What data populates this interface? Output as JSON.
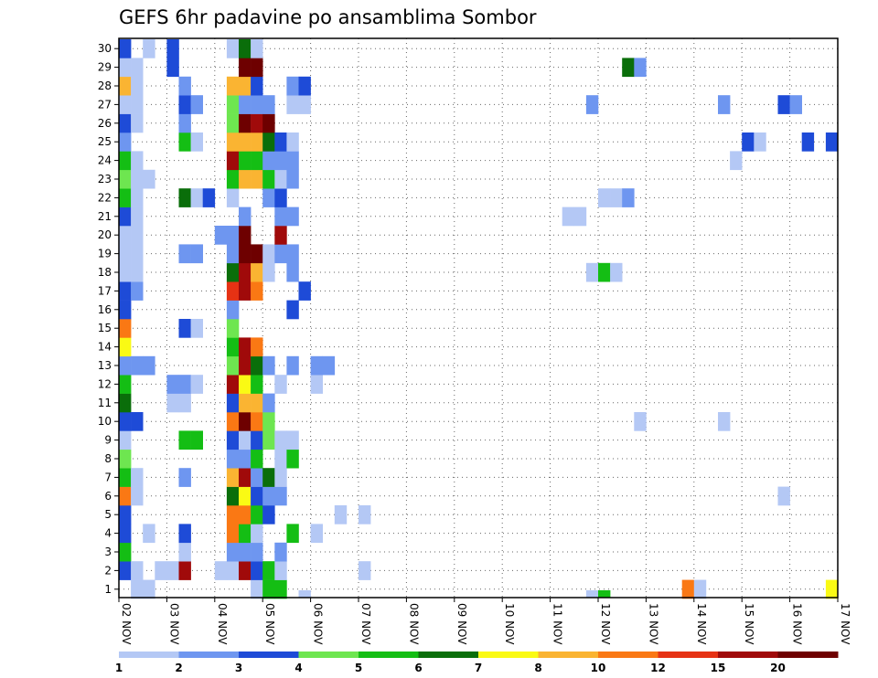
{
  "chart_data": {
    "type": "heatmap",
    "title": "GEFS 6hr padavine po ansamblima Sombor",
    "x_tick_labels": [
      "02 NOV",
      "03 NOV",
      "04 NOV",
      "05 NOV",
      "06 NOV",
      "07 NOV",
      "08 NOV",
      "09 NOV",
      "10 NOV",
      "11 NOV",
      "12 NOV",
      "13 NOV",
      "14 NOV",
      "15 NOV",
      "16 NOV",
      "17 NOV"
    ],
    "y_tick_labels": [
      "1",
      "2",
      "3",
      "4",
      "5",
      "6",
      "7",
      "8",
      "9",
      "10",
      "11",
      "12",
      "13",
      "14",
      "15",
      "16",
      "17",
      "18",
      "19",
      "20",
      "21",
      "22",
      "23",
      "24",
      "25",
      "26",
      "27",
      "28",
      "29",
      "30"
    ],
    "x_unit": "6-hour step from 02 NOV 00Z",
    "y_unit": "ensemble member",
    "grid": "dotted",
    "legend": {
      "position": "bottom",
      "labels": [
        "1",
        "2",
        "3",
        "4",
        "5",
        "6",
        "7",
        "8",
        "10",
        "12",
        "15",
        "20"
      ],
      "colors": [
        "#b4c8f5",
        "#6e96f0",
        "#1e4bd7",
        "#6ee650",
        "#14be14",
        "#0a6e0a",
        "#fafa14",
        "#fab432",
        "#fa7814",
        "#e63214",
        "#a00a0a",
        "#6e0000"
      ]
    },
    "color_levels": [
      1,
      2,
      3,
      4,
      5,
      6,
      7,
      8,
      10,
      12,
      15,
      20
    ],
    "cells": [
      [
        0,
        1,
        3
      ],
      [
        0,
        2,
        5
      ],
      [
        0,
        3,
        3
      ],
      [
        0,
        4,
        3
      ],
      [
        0,
        5,
        9
      ],
      [
        0,
        6,
        5
      ],
      [
        0,
        7,
        4
      ],
      [
        0,
        8,
        1
      ],
      [
        0,
        9,
        3
      ],
      [
        0,
        10,
        6
      ],
      [
        0,
        11,
        5
      ],
      [
        0,
        12,
        2
      ],
      [
        0,
        13,
        7
      ],
      [
        0,
        14,
        9
      ],
      [
        0,
        15,
        3
      ],
      [
        0,
        16,
        3
      ],
      [
        0,
        17,
        1
      ],
      [
        0,
        18,
        1
      ],
      [
        0,
        19,
        1
      ],
      [
        0,
        20,
        3
      ],
      [
        0,
        21,
        5
      ],
      [
        0,
        22,
        4
      ],
      [
        0,
        23,
        5
      ],
      [
        0,
        24,
        2
      ],
      [
        0,
        25,
        3
      ],
      [
        0,
        26,
        1
      ],
      [
        0,
        27,
        8
      ],
      [
        0,
        28,
        1
      ],
      [
        0,
        29,
        3
      ],
      [
        1,
        0,
        1
      ],
      [
        1,
        1,
        1
      ],
      [
        1,
        5,
        1
      ],
      [
        1,
        6,
        1
      ],
      [
        1,
        9,
        3
      ],
      [
        1,
        12,
        2
      ],
      [
        1,
        16,
        2
      ],
      [
        1,
        17,
        1
      ],
      [
        1,
        18,
        1
      ],
      [
        1,
        19,
        1
      ],
      [
        1,
        20,
        1
      ],
      [
        1,
        21,
        1
      ],
      [
        1,
        22,
        1
      ],
      [
        1,
        23,
        1
      ],
      [
        1,
        25,
        1
      ],
      [
        1,
        26,
        1
      ],
      [
        1,
        27,
        1
      ],
      [
        1,
        28,
        1
      ],
      [
        2,
        0,
        1
      ],
      [
        2,
        3,
        1
      ],
      [
        2,
        12,
        2
      ],
      [
        2,
        22,
        1
      ],
      [
        2,
        29,
        1
      ],
      [
        3,
        1,
        1
      ],
      [
        4,
        1,
        1
      ],
      [
        4,
        10,
        1
      ],
      [
        4,
        11,
        2
      ],
      [
        4,
        28,
        3
      ],
      [
        4,
        29,
        3
      ],
      [
        5,
        1,
        11
      ],
      [
        5,
        2,
        1
      ],
      [
        5,
        3,
        3
      ],
      [
        5,
        6,
        2
      ],
      [
        5,
        8,
        5
      ],
      [
        5,
        10,
        1
      ],
      [
        5,
        11,
        2
      ],
      [
        5,
        14,
        3
      ],
      [
        5,
        18,
        2
      ],
      [
        5,
        21,
        6
      ],
      [
        5,
        24,
        5
      ],
      [
        5,
        25,
        2
      ],
      [
        5,
        26,
        3
      ],
      [
        5,
        27,
        2
      ],
      [
        6,
        8,
        5
      ],
      [
        6,
        11,
        1
      ],
      [
        6,
        14,
        1
      ],
      [
        6,
        18,
        2
      ],
      [
        6,
        21,
        1
      ],
      [
        6,
        24,
        1
      ],
      [
        6,
        26,
        2
      ],
      [
        7,
        21,
        3
      ],
      [
        8,
        1,
        1
      ],
      [
        8,
        19,
        2
      ],
      [
        9,
        1,
        1
      ],
      [
        9,
        2,
        2
      ],
      [
        9,
        3,
        9
      ],
      [
        9,
        4,
        9
      ],
      [
        9,
        5,
        6
      ],
      [
        9,
        6,
        8
      ],
      [
        9,
        7,
        2
      ],
      [
        9,
        8,
        3
      ],
      [
        9,
        9,
        9
      ],
      [
        9,
        10,
        3
      ],
      [
        9,
        11,
        11
      ],
      [
        9,
        12,
        4
      ],
      [
        9,
        13,
        5
      ],
      [
        9,
        14,
        4
      ],
      [
        9,
        15,
        2
      ],
      [
        9,
        16,
        10
      ],
      [
        9,
        17,
        6
      ],
      [
        9,
        18,
        2
      ],
      [
        9,
        19,
        2
      ],
      [
        9,
        21,
        1
      ],
      [
        9,
        22,
        5
      ],
      [
        9,
        23,
        11
      ],
      [
        9,
        24,
        8
      ],
      [
        9,
        25,
        4
      ],
      [
        9,
        26,
        4
      ],
      [
        9,
        27,
        8
      ],
      [
        9,
        29,
        1
      ],
      [
        10,
        1,
        11
      ],
      [
        10,
        2,
        2
      ],
      [
        10,
        3,
        5
      ],
      [
        10,
        4,
        9
      ],
      [
        10,
        5,
        7
      ],
      [
        10,
        6,
        11
      ],
      [
        10,
        7,
        2
      ],
      [
        10,
        8,
        1
      ],
      [
        10,
        9,
        12
      ],
      [
        10,
        10,
        8
      ],
      [
        10,
        11,
        7
      ],
      [
        10,
        12,
        11
      ],
      [
        10,
        13,
        11
      ],
      [
        10,
        16,
        11
      ],
      [
        10,
        17,
        11
      ],
      [
        10,
        18,
        12
      ],
      [
        10,
        19,
        12
      ],
      [
        10,
        20,
        2
      ],
      [
        10,
        22,
        8
      ],
      [
        10,
        23,
        5
      ],
      [
        10,
        24,
        8
      ],
      [
        10,
        25,
        12
      ],
      [
        10,
        26,
        2
      ],
      [
        10,
        27,
        8
      ],
      [
        10,
        28,
        12
      ],
      [
        10,
        29,
        6
      ],
      [
        11,
        0,
        1
      ],
      [
        11,
        1,
        3
      ],
      [
        11,
        2,
        2
      ],
      [
        11,
        3,
        1
      ],
      [
        11,
        4,
        5
      ],
      [
        11,
        5,
        3
      ],
      [
        11,
        6,
        2
      ],
      [
        11,
        7,
        5
      ],
      [
        11,
        8,
        3
      ],
      [
        11,
        9,
        9
      ],
      [
        11,
        10,
        8
      ],
      [
        11,
        11,
        5
      ],
      [
        11,
        12,
        6
      ],
      [
        11,
        13,
        9
      ],
      [
        11,
        16,
        9
      ],
      [
        11,
        17,
        8
      ],
      [
        11,
        18,
        12
      ],
      [
        11,
        22,
        8
      ],
      [
        11,
        23,
        5
      ],
      [
        11,
        24,
        8
      ],
      [
        11,
        25,
        11
      ],
      [
        11,
        26,
        2
      ],
      [
        11,
        27,
        3
      ],
      [
        11,
        28,
        12
      ],
      [
        11,
        29,
        1
      ],
      [
        12,
        0,
        5
      ],
      [
        12,
        1,
        5
      ],
      [
        12,
        4,
        3
      ],
      [
        12,
        5,
        2
      ],
      [
        12,
        6,
        6
      ],
      [
        12,
        8,
        4
      ],
      [
        12,
        9,
        4
      ],
      [
        12,
        10,
        2
      ],
      [
        12,
        12,
        2
      ],
      [
        12,
        17,
        1
      ],
      [
        12,
        18,
        1
      ],
      [
        12,
        21,
        2
      ],
      [
        12,
        22,
        5
      ],
      [
        12,
        23,
        2
      ],
      [
        12,
        24,
        6
      ],
      [
        12,
        25,
        12
      ],
      [
        12,
        26,
        2
      ],
      [
        13,
        0,
        5
      ],
      [
        13,
        1,
        1
      ],
      [
        13,
        2,
        2
      ],
      [
        13,
        5,
        2
      ],
      [
        13,
        6,
        1
      ],
      [
        13,
        7,
        1
      ],
      [
        13,
        8,
        1
      ],
      [
        13,
        11,
        1
      ],
      [
        13,
        18,
        2
      ],
      [
        13,
        19,
        11
      ],
      [
        13,
        20,
        2
      ],
      [
        13,
        21,
        3
      ],
      [
        13,
        22,
        1
      ],
      [
        13,
        23,
        2
      ],
      [
        13,
        24,
        3
      ],
      [
        14,
        3,
        5
      ],
      [
        14,
        7,
        5
      ],
      [
        14,
        8,
        1
      ],
      [
        14,
        12,
        2
      ],
      [
        14,
        15,
        3
      ],
      [
        14,
        17,
        2
      ],
      [
        14,
        18,
        2
      ],
      [
        14,
        20,
        2
      ],
      [
        14,
        22,
        2
      ],
      [
        14,
        23,
        2
      ],
      [
        14,
        24,
        1
      ],
      [
        14,
        26,
        1
      ],
      [
        14,
        27,
        2
      ],
      [
        15,
        -1,
        1
      ],
      [
        15,
        16,
        3
      ],
      [
        15,
        26,
        1
      ],
      [
        15,
        27,
        3
      ],
      [
        16,
        3,
        1
      ],
      [
        16,
        11,
        1
      ],
      [
        16,
        12,
        2
      ],
      [
        17,
        12,
        2
      ],
      [
        18,
        4,
        1
      ],
      [
        20,
        1,
        1
      ],
      [
        20,
        4,
        1
      ],
      [
        37,
        20,
        1
      ],
      [
        38,
        20,
        1
      ],
      [
        39,
        -1,
        1
      ],
      [
        39,
        17,
        1
      ],
      [
        39,
        26,
        2
      ],
      [
        40,
        -1,
        5
      ],
      [
        40,
        17,
        5
      ],
      [
        40,
        21,
        1
      ],
      [
        41,
        17,
        1
      ],
      [
        41,
        21,
        1
      ],
      [
        42,
        21,
        2
      ],
      [
        42,
        28,
        6
      ],
      [
        43,
        9,
        1
      ],
      [
        43,
        28,
        2
      ],
      [
        47,
        0,
        9
      ],
      [
        48,
        0,
        1
      ],
      [
        50,
        9,
        1
      ],
      [
        50,
        26,
        2
      ],
      [
        51,
        23,
        1
      ],
      [
        52,
        24,
        3
      ],
      [
        53,
        24,
        1
      ],
      [
        55,
        5,
        1
      ],
      [
        55,
        26,
        3
      ],
      [
        56,
        26,
        2
      ],
      [
        57,
        24,
        3
      ],
      [
        59,
        0,
        7
      ],
      [
        59,
        24,
        3
      ]
    ]
  }
}
